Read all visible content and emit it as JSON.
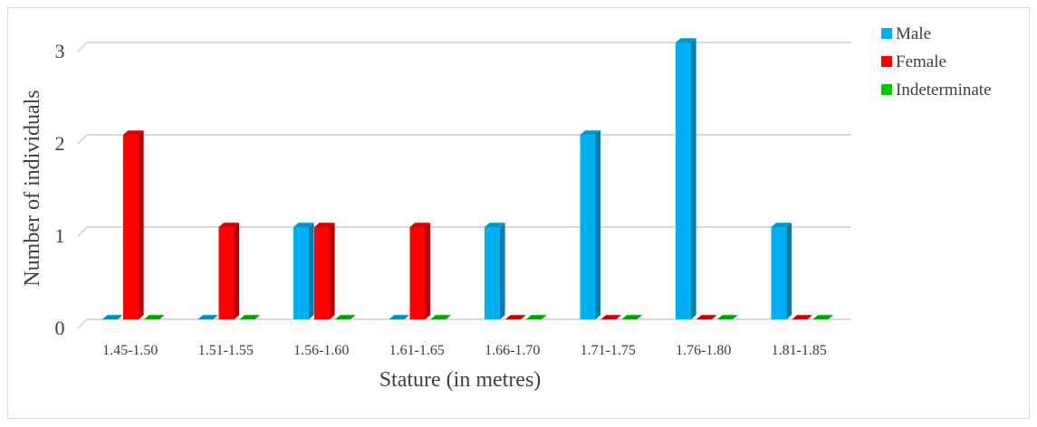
{
  "chart_data": {
    "type": "bar",
    "title": "",
    "xlabel": "Stature (in metres)",
    "ylabel": "Number of individuals",
    "ylim": [
      0,
      3
    ],
    "yticks": [
      "0",
      "1",
      "2",
      "3"
    ],
    "grid": true,
    "legend_position": "right",
    "categories": [
      "1.45-1.50",
      "1.51-1.55",
      "1.56-1.60",
      "1.61-1.65",
      "1.66-1.70",
      "1.71-1.75",
      "1.76-1.80",
      "1.81-1.85"
    ],
    "series": [
      {
        "name": "Male",
        "color": "#00b0f0",
        "values": [
          0,
          0,
          1,
          0,
          1,
          2,
          3,
          1
        ]
      },
      {
        "name": "Female",
        "color": "#ff0000",
        "values": [
          2,
          1,
          1,
          1,
          0,
          0,
          0,
          0
        ]
      },
      {
        "name": "Indeterminate",
        "color": "#00cc00",
        "values": [
          0,
          0,
          0,
          0,
          0,
          0,
          0,
          0
        ]
      }
    ]
  }
}
